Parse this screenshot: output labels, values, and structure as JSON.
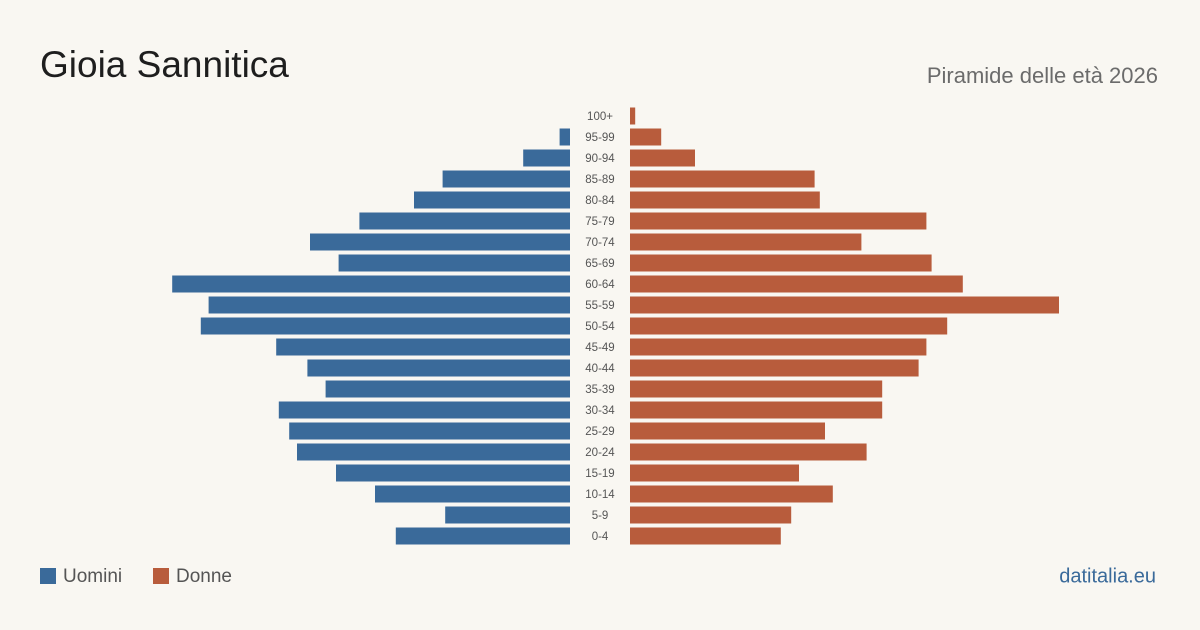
{
  "chart_data": {
    "type": "pyramid",
    "title": "Gioia Sannitica",
    "subtitle": "Piramide delle età 2026",
    "source": "datitalia.eu",
    "categories": [
      "100+",
      "95-99",
      "90-94",
      "85-89",
      "80-84",
      "75-79",
      "70-74",
      "65-69",
      "60-64",
      "55-59",
      "50-54",
      "45-49",
      "40-44",
      "35-39",
      "30-34",
      "25-29",
      "20-24",
      "15-19",
      "10-14",
      "5-9",
      "0-4"
    ],
    "series": [
      {
        "name": "Uomini",
        "color": "#3a6a9a",
        "values": [
          0,
          4,
          18,
          49,
          60,
          81,
          100,
          89,
          153,
          139,
          142,
          113,
          101,
          94,
          112,
          108,
          105,
          90,
          75,
          48,
          67
        ]
      },
      {
        "name": "Donne",
        "color": "#b85c3c",
        "values": [
          2,
          12,
          25,
          71,
          73,
          114,
          89,
          116,
          128,
          165,
          122,
          114,
          111,
          97,
          97,
          75,
          91,
          65,
          78,
          62,
          58
        ]
      }
    ]
  }
}
